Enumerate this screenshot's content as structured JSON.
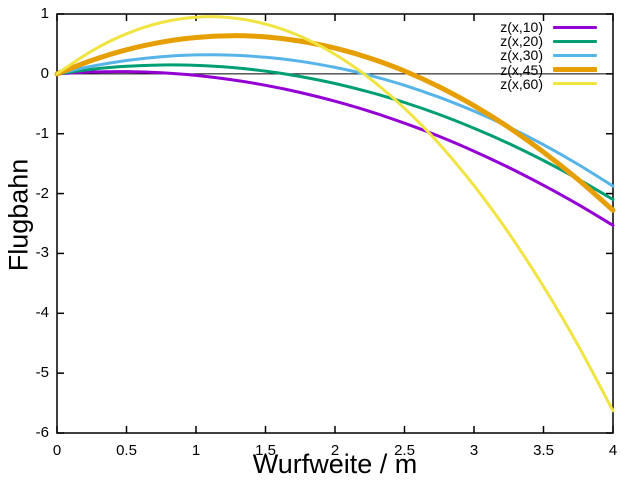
{
  "chart_data": {
    "type": "line",
    "title": "",
    "xlabel": "Wurfweite / m",
    "ylabel": "Flugbahn",
    "xlim": [
      0,
      4
    ],
    "ylim": [
      -6,
      1
    ],
    "grid": false,
    "zero_axis": true,
    "legend_position": "top-right-inside",
    "x_tick_labels": [
      "0",
      "0.5",
      "1",
      "1.5",
      "2",
      "2.5",
      "3",
      "3.5",
      "4"
    ],
    "x_tick_values": [
      0,
      0.5,
      1,
      1.5,
      2,
      2.5,
      3,
      3.5,
      4
    ],
    "y_tick_labels": [
      "1",
      "0",
      "-1",
      "-2",
      "-3",
      "-4",
      "-5",
      "-6"
    ],
    "y_tick_values": [
      1,
      0,
      -1,
      -2,
      -3,
      -4,
      -5,
      -6
    ],
    "x": [
      0,
      0.25,
      0.5,
      0.75,
      1,
      1.25,
      1.5,
      1.75,
      2,
      2.25,
      2.5,
      2.75,
      3,
      3.25,
      3.5,
      3.75,
      4
    ],
    "series": [
      {
        "name": "z(x,10)",
        "color": "#9400d3",
        "line_width": 3,
        "values": [
          0,
          0.031,
          0.038,
          0.018,
          -0.026,
          -0.096,
          -0.191,
          -0.311,
          -0.457,
          -0.627,
          -0.824,
          -1.045,
          -1.292,
          -1.564,
          -1.861,
          -2.184,
          -2.531
        ]
      },
      {
        "name": "z(x,20)",
        "color": "#009e73",
        "line_width": 3,
        "values": [
          0,
          0.077,
          0.126,
          0.148,
          0.142,
          0.108,
          0.046,
          -0.044,
          -0.161,
          -0.306,
          -0.479,
          -0.679,
          -0.908,
          -1.164,
          -1.448,
          -1.76,
          -2.099
        ]
      },
      {
        "name": "z(x,30)",
        "color": "#56b4e9",
        "line_width": 3,
        "values": [
          0,
          0.128,
          0.223,
          0.286,
          0.316,
          0.313,
          0.277,
          0.209,
          0.108,
          -0.025,
          -0.192,
          -0.391,
          -0.622,
          -0.887,
          -1.184,
          -1.514,
          -1.876
        ]
      },
      {
        "name": "z(x,45)",
        "color": "#e69f00",
        "line_width": 5,
        "values": [
          0,
          0.225,
          0.402,
          0.529,
          0.608,
          0.637,
          0.617,
          0.548,
          0.43,
          0.263,
          0.048,
          -0.218,
          -0.532,
          -0.895,
          -1.307,
          -1.768,
          -2.278
        ]
      },
      {
        "name": "z(x,60)",
        "color": "#f0e442",
        "line_width": 3,
        "values": [
          0,
          0.384,
          0.67,
          0.858,
          0.947,
          0.939,
          0.832,
          0.628,
          0.325,
          -0.076,
          -0.575,
          -1.172,
          -1.867,
          -2.66,
          -3.552,
          -4.541,
          -5.629
        ]
      }
    ]
  },
  "colors": {
    "background": "#ffffff",
    "axis": "#000000",
    "text": "#000000"
  }
}
